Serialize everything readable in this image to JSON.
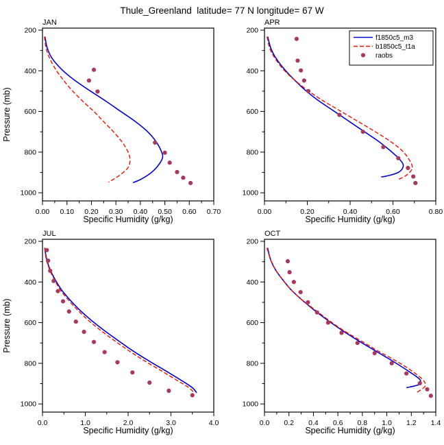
{
  "chart_data": {
    "type": "line",
    "title": "Thule_Greenland  latitude= 77 N longitude= 67 W",
    "xlabel": "Specific Humidity (g/kg)",
    "y_axis": {
      "label": "Pressure (mb)",
      "ticks": [
        200,
        400,
        600,
        800,
        1000
      ],
      "range": [
        190,
        1040
      ],
      "minor_div": 2,
      "inverted": true
    },
    "legend": {
      "position": "top-right-of-APR-panel",
      "entries": [
        {
          "name": "f1850c5_m3",
          "style": "solid",
          "color": "#0000cc"
        },
        {
          "name": "b1850c5_t1a",
          "style": "dashed",
          "color": "#ee1100"
        },
        {
          "name": "raobs",
          "style": "dot",
          "color": "#a8385e"
        }
      ]
    },
    "panels": [
      {
        "id": "jan",
        "label": "JAN",
        "xlim": [
          0,
          0.7
        ],
        "xticks": [
          0,
          0.1,
          0.2,
          0.3,
          0.4,
          0.5,
          0.6,
          0.7
        ],
        "xtick_labels": [
          "0.00",
          "0.10",
          "0.20",
          "0.30",
          "0.40",
          "0.50",
          "0.60",
          "0.70"
        ],
        "xminor_div": 2,
        "show_ylabel": true,
        "show_legend": false,
        "series": {
          "f1850c5_m3": [
            [
              0.01,
              232
            ],
            [
              0.02,
              290
            ],
            [
              0.04,
              340
            ],
            [
              0.08,
              395
            ],
            [
              0.13,
              445
            ],
            [
              0.19,
              495
            ],
            [
              0.26,
              550
            ],
            [
              0.32,
              600
            ],
            [
              0.38,
              650
            ],
            [
              0.43,
              700
            ],
            [
              0.465,
              750
            ],
            [
              0.487,
              800
            ],
            [
              0.49,
              830
            ],
            [
              0.47,
              870
            ],
            [
              0.44,
              905
            ],
            [
              0.4,
              935
            ],
            [
              0.37,
              950
            ]
          ],
          "b1850c5_t1a": [
            [
              0.008,
              232
            ],
            [
              0.015,
              290
            ],
            [
              0.03,
              340
            ],
            [
              0.055,
              395
            ],
            [
              0.085,
              445
            ],
            [
              0.12,
              495
            ],
            [
              0.165,
              550
            ],
            [
              0.21,
              600
            ],
            [
              0.25,
              650
            ],
            [
              0.29,
              700
            ],
            [
              0.325,
              750
            ],
            [
              0.35,
              800
            ],
            [
              0.358,
              840
            ],
            [
              0.35,
              875
            ],
            [
              0.325,
              905
            ],
            [
              0.295,
              930
            ],
            [
              0.27,
              948
            ]
          ],
          "raobs": [
            [
              0.21,
              395
            ],
            [
              0.19,
              448
            ],
            [
              0.225,
              502
            ],
            [
              0.46,
              753
            ],
            [
              0.5,
              803
            ],
            [
              0.52,
              852
            ],
            [
              0.55,
              898
            ],
            [
              0.575,
              926
            ],
            [
              0.605,
              952
            ]
          ]
        }
      },
      {
        "id": "apr",
        "label": "APR",
        "xlim": [
          0,
          0.8
        ],
        "xticks": [
          0,
          0.2,
          0.4,
          0.6,
          0.8
        ],
        "xtick_labels": [
          "0.00",
          "0.20",
          "0.40",
          "0.60",
          "0.80"
        ],
        "xminor_div": 2,
        "show_ylabel": false,
        "show_legend": true,
        "series": {
          "f1850c5_m3": [
            [
              0.015,
              232
            ],
            [
              0.03,
              290
            ],
            [
              0.055,
              340
            ],
            [
              0.095,
              395
            ],
            [
              0.14,
              445
            ],
            [
              0.19,
              495
            ],
            [
              0.25,
              545
            ],
            [
              0.32,
              595
            ],
            [
              0.39,
              645
            ],
            [
              0.46,
              695
            ],
            [
              0.53,
              745
            ],
            [
              0.59,
              795
            ],
            [
              0.635,
              840
            ],
            [
              0.648,
              870
            ],
            [
              0.625,
              900
            ],
            [
              0.57,
              918
            ],
            [
              0.545,
              922
            ]
          ],
          "b1850c5_t1a": [
            [
              0.012,
              232
            ],
            [
              0.025,
              290
            ],
            [
              0.05,
              340
            ],
            [
              0.09,
              395
            ],
            [
              0.14,
              445
            ],
            [
              0.2,
              495
            ],
            [
              0.27,
              545
            ],
            [
              0.35,
              595
            ],
            [
              0.43,
              645
            ],
            [
              0.51,
              695
            ],
            [
              0.585,
              745
            ],
            [
              0.645,
              795
            ],
            [
              0.68,
              845
            ],
            [
              0.69,
              880
            ],
            [
              0.665,
              912
            ],
            [
              0.625,
              935
            ]
          ],
          "raobs": [
            [
              0.15,
              243
            ],
            [
              0.155,
              350
            ],
            [
              0.17,
              398
            ],
            [
              0.185,
              448
            ],
            [
              0.205,
              500
            ],
            [
              0.35,
              617
            ],
            [
              0.46,
              700
            ],
            [
              0.555,
              775
            ],
            [
              0.625,
              830
            ],
            [
              0.67,
              878
            ],
            [
              0.695,
              920
            ],
            [
              0.705,
              952
            ]
          ]
        }
      },
      {
        "id": "jul",
        "label": "JUL",
        "xlim": [
          0,
          4.0
        ],
        "xticks": [
          0,
          1.0,
          2.0,
          3.0,
          4.0
        ],
        "xtick_labels": [
          "0.0",
          "1.0",
          "2.0",
          "3.0",
          "4.0"
        ],
        "xminor_div": 2,
        "show_ylabel": true,
        "show_legend": false,
        "series": {
          "f1850c5_m3": [
            [
              0.05,
              232
            ],
            [
              0.1,
              290
            ],
            [
              0.18,
              340
            ],
            [
              0.3,
              390
            ],
            [
              0.45,
              440
            ],
            [
              0.65,
              490
            ],
            [
              0.88,
              540
            ],
            [
              1.15,
              590
            ],
            [
              1.45,
              640
            ],
            [
              1.78,
              690
            ],
            [
              2.12,
              740
            ],
            [
              2.5,
              790
            ],
            [
              2.9,
              840
            ],
            [
              3.25,
              885
            ],
            [
              3.5,
              920
            ],
            [
              3.6,
              945
            ]
          ],
          "b1850c5_t1a": [
            [
              0.05,
              232
            ],
            [
              0.09,
              290
            ],
            [
              0.17,
              340
            ],
            [
              0.28,
              390
            ],
            [
              0.42,
              440
            ],
            [
              0.61,
              490
            ],
            [
              0.83,
              540
            ],
            [
              1.08,
              590
            ],
            [
              1.37,
              640
            ],
            [
              1.69,
              690
            ],
            [
              2.03,
              740
            ],
            [
              2.4,
              790
            ],
            [
              2.8,
              840
            ],
            [
              3.15,
              885
            ],
            [
              3.42,
              920
            ],
            [
              3.55,
              948
            ]
          ],
          "raobs": [
            [
              0.1,
              243
            ],
            [
              0.13,
              295
            ],
            [
              0.18,
              345
            ],
            [
              0.26,
              395
            ],
            [
              0.36,
              445
            ],
            [
              0.48,
              495
            ],
            [
              0.62,
              545
            ],
            [
              0.78,
              595
            ],
            [
              0.97,
              645
            ],
            [
              1.2,
              695
            ],
            [
              1.45,
              745
            ],
            [
              1.75,
              795
            ],
            [
              2.1,
              845
            ],
            [
              2.5,
              895
            ],
            [
              2.95,
              935
            ],
            [
              3.5,
              957
            ]
          ]
        }
      },
      {
        "id": "oct",
        "label": "OCT",
        "xlim": [
          0,
          1.4
        ],
        "xticks": [
          0,
          0.2,
          0.4,
          0.6,
          0.8,
          1.0,
          1.2,
          1.4
        ],
        "xtick_labels": [
          "0.0",
          "0.2",
          "0.4",
          "0.6",
          "0.8",
          "1.0",
          "1.2",
          "1.4"
        ],
        "xminor_div": 2,
        "show_ylabel": false,
        "show_legend": false,
        "series": {
          "f1850c5_m3": [
            [
              0.025,
              232
            ],
            [
              0.05,
              290
            ],
            [
              0.09,
              340
            ],
            [
              0.15,
              390
            ],
            [
              0.22,
              440
            ],
            [
              0.31,
              490
            ],
            [
              0.41,
              540
            ],
            [
              0.52,
              590
            ],
            [
              0.64,
              640
            ],
            [
              0.77,
              690
            ],
            [
              0.91,
              740
            ],
            [
              1.05,
              790
            ],
            [
              1.18,
              840
            ],
            [
              1.27,
              880
            ],
            [
              1.26,
              905
            ],
            [
              1.16,
              920
            ]
          ],
          "b1850c5_t1a": [
            [
              0.02,
              232
            ],
            [
              0.05,
              290
            ],
            [
              0.09,
              340
            ],
            [
              0.15,
              390
            ],
            [
              0.22,
              440
            ],
            [
              0.31,
              490
            ],
            [
              0.42,
              540
            ],
            [
              0.53,
              590
            ],
            [
              0.65,
              640
            ],
            [
              0.79,
              690
            ],
            [
              0.93,
              740
            ],
            [
              1.08,
              790
            ],
            [
              1.21,
              840
            ],
            [
              1.3,
              885
            ],
            [
              1.31,
              915
            ],
            [
              1.24,
              945
            ]
          ],
          "raobs": [
            [
              0.19,
              298
            ],
            [
              0.205,
              352
            ],
            [
              0.24,
              400
            ],
            [
              0.295,
              450
            ],
            [
              0.355,
              500
            ],
            [
              0.43,
              550
            ],
            [
              0.52,
              600
            ],
            [
              0.63,
              650
            ],
            [
              0.76,
              700
            ],
            [
              0.9,
              750
            ],
            [
              1.04,
              800
            ],
            [
              1.16,
              850
            ],
            [
              1.27,
              898
            ],
            [
              1.33,
              928
            ],
            [
              1.36,
              960
            ]
          ]
        }
      }
    ]
  }
}
